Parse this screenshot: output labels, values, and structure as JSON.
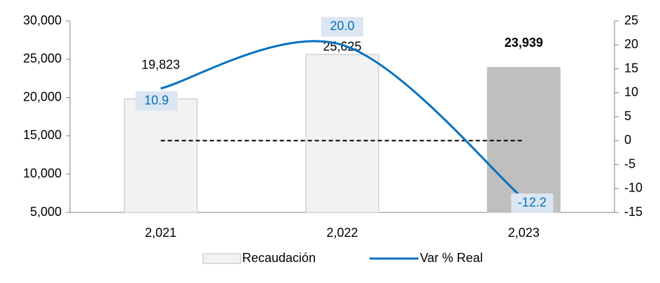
{
  "chart_data": {
    "type": "bar-line",
    "categories": [
      "2,021",
      "2,022",
      "2,023"
    ],
    "series": [
      {
        "name": "Recaudación",
        "type": "bar",
        "colors": [
          "#f2f2f2",
          "#f2f2f2",
          "#bfbfbf"
        ],
        "values": [
          19823,
          25625,
          23939
        ],
        "value_labels": [
          "19,823",
          "25,625",
          "23,939"
        ]
      },
      {
        "name": "Var % Real",
        "type": "line",
        "axis": "y2",
        "color": "#0070c0",
        "values": [
          10.9,
          20.0,
          -12.2
        ],
        "value_labels": [
          "10.9",
          "20.0",
          "-12.2"
        ]
      }
    ],
    "ylim": [
      5000,
      30000
    ],
    "yticks": [
      {
        "value": 5000,
        "label": "5,000"
      },
      {
        "value": 10000,
        "label": "10,000"
      },
      {
        "value": 15000,
        "label": "15,000"
      },
      {
        "value": 20000,
        "label": "20,000"
      },
      {
        "value": 25000,
        "label": "25,000"
      },
      {
        "value": 30000,
        "label": "30,000"
      }
    ],
    "y2lim": [
      -15,
      25
    ],
    "y2ticks": [
      -15,
      -10,
      -5,
      0,
      5,
      10,
      15,
      20,
      25
    ],
    "legend": "bottom"
  }
}
